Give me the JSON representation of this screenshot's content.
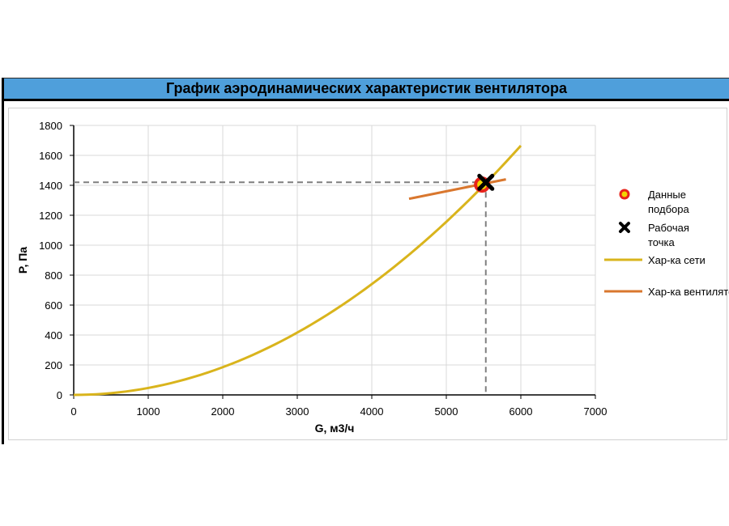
{
  "title": "График аэродинамических характеристик вентилятора",
  "chart_data": {
    "type": "line",
    "title": "График аэродинамических характеристик вентилятора",
    "xlabel": "G, м3/ч",
    "ylabel": "P, Па",
    "xlim": [
      0,
      7000
    ],
    "ylim": [
      0,
      1800
    ],
    "xticks": [
      0,
      1000,
      2000,
      3000,
      4000,
      5000,
      6000,
      7000
    ],
    "yticks": [
      0,
      200,
      400,
      600,
      800,
      1000,
      1200,
      1400,
      1600,
      1800
    ],
    "grid": true,
    "legend_position": "right",
    "series": [
      {
        "name": "Хар-ка сети",
        "type": "line",
        "color": "#d9b41c",
        "x": [
          0,
          1000,
          2000,
          3000,
          4000,
          5000,
          6000
        ],
        "y": [
          0,
          46,
          185,
          416,
          740,
          1156,
          1665
        ]
      },
      {
        "name": "Хар-ка вентилятора",
        "type": "line",
        "color": "#d9772e",
        "x": [
          4500,
          5000,
          5500,
          5800
        ],
        "y": [
          1310,
          1360,
          1410,
          1440
        ]
      },
      {
        "name": [
          "Данные",
          "подбора"
        ],
        "type": "marker",
        "marker": "ring",
        "color": "#e8231b",
        "x": [
          5480
        ],
        "y": [
          1405
        ]
      },
      {
        "name": [
          "Рабочая",
          "точка"
        ],
        "type": "marker",
        "marker": "cross",
        "color": "#000000",
        "x": [
          5530
        ],
        "y": [
          1420
        ]
      }
    ],
    "guides": {
      "x": 5530,
      "y": 1420,
      "color": "#7f7f7f"
    }
  }
}
